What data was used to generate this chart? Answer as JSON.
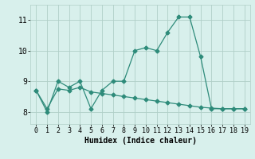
{
  "xlabel": "Humidex (Indice chaleur)",
  "line1_x": [
    0,
    1,
    2,
    3,
    4,
    5,
    6,
    7,
    8,
    9,
    10,
    11,
    12,
    13,
    14,
    15,
    16,
    17,
    18,
    19
  ],
  "line1_y": [
    8.7,
    8.0,
    9.0,
    8.8,
    9.0,
    8.1,
    8.7,
    9.0,
    9.0,
    10.0,
    10.1,
    10.0,
    10.6,
    11.1,
    11.1,
    9.8,
    8.1,
    8.1,
    8.1,
    8.1
  ],
  "line2_x": [
    0,
    1,
    2,
    3,
    4,
    5,
    6,
    7,
    8,
    9,
    10,
    11,
    12,
    13,
    14,
    15,
    16,
    17,
    18,
    19
  ],
  "line2_y": [
    8.7,
    8.1,
    8.75,
    8.7,
    8.8,
    8.65,
    8.6,
    8.55,
    8.5,
    8.45,
    8.4,
    8.35,
    8.3,
    8.25,
    8.2,
    8.15,
    8.12,
    8.1,
    8.1,
    8.1
  ],
  "line_color": "#2e8b7a",
  "bg_color": "#d8f0ec",
  "grid_color": "#b0cfc8",
  "ylim": [
    7.6,
    11.5
  ],
  "yticks": [
    8,
    9,
    10,
    11
  ],
  "xticks": [
    0,
    1,
    2,
    3,
    4,
    5,
    6,
    7,
    8,
    9,
    10,
    11,
    12,
    13,
    14,
    15,
    16,
    17,
    18,
    19
  ],
  "markersize": 2.5,
  "linewidth": 0.9
}
